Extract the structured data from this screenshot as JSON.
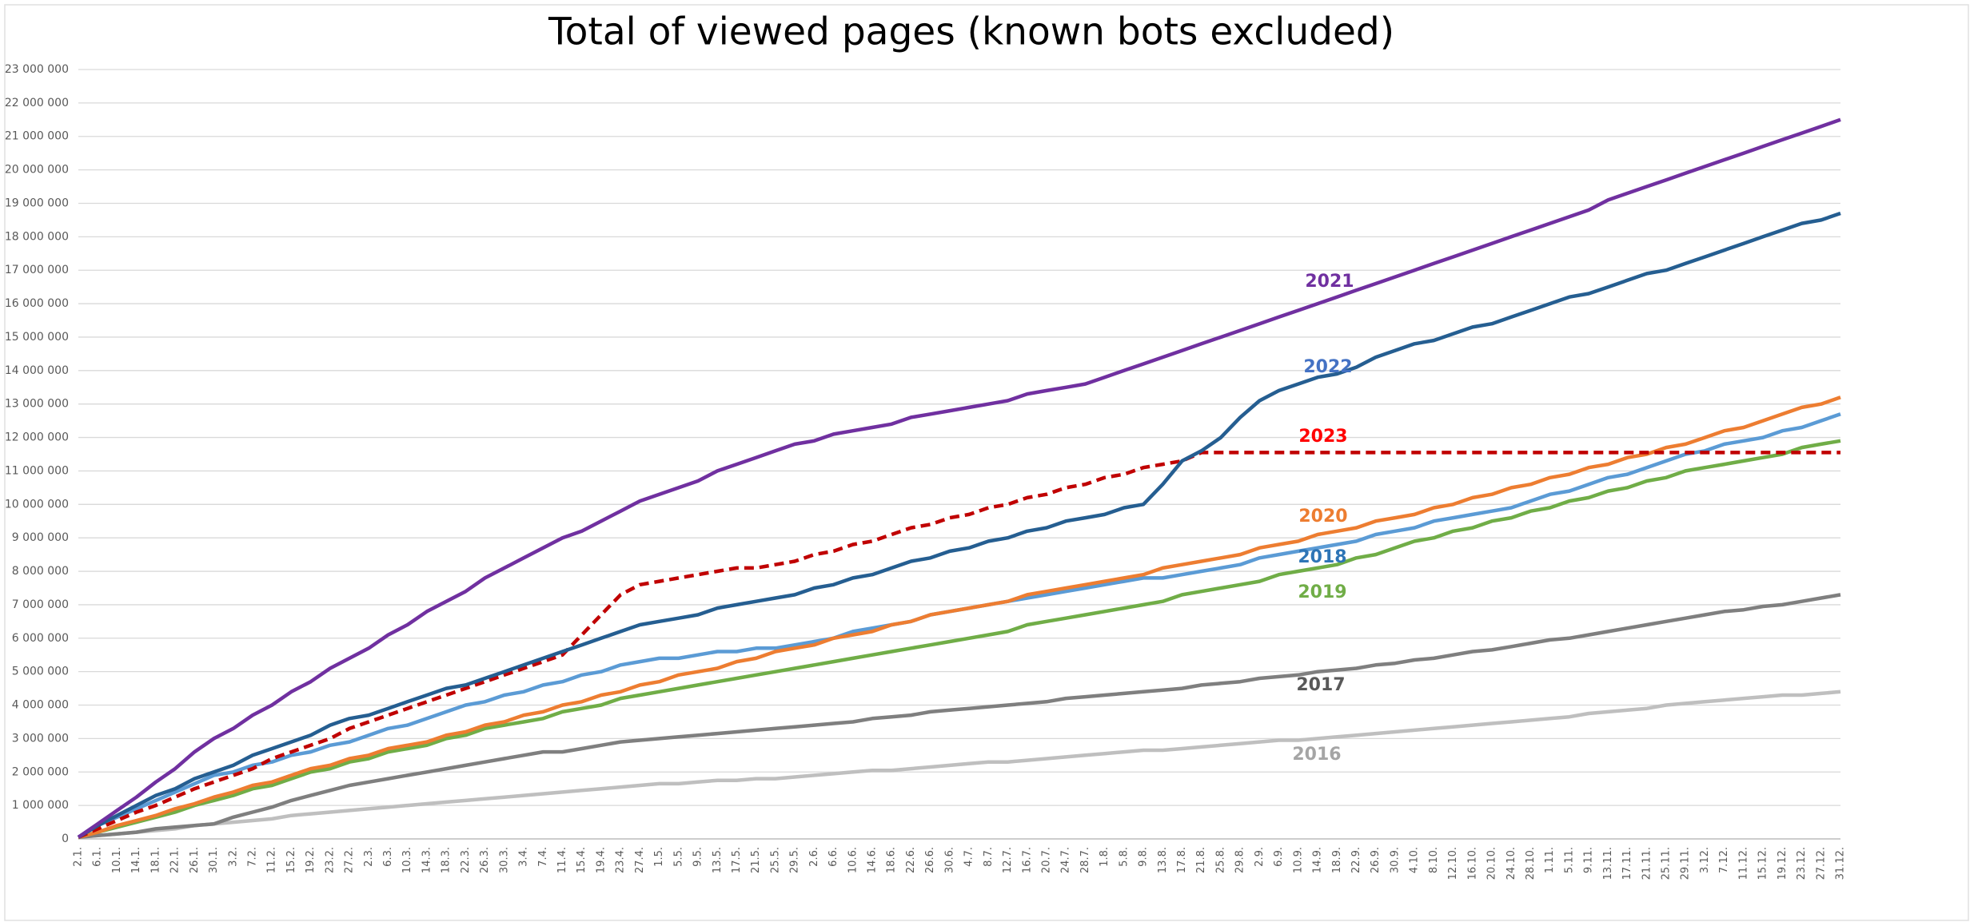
{
  "chart_data": {
    "type": "line",
    "title": "Total of viewed pages (known bots excluded)",
    "categories": [
      "2.1.",
      "6.1.",
      "10.1.",
      "14.1.",
      "18.1.",
      "22.1.",
      "26.1.",
      "30.1.",
      "3.2.",
      "7.2.",
      "11.2.",
      "15.2.",
      "19.2.",
      "23.2.",
      "27.2.",
      "2.3.",
      "6.3.",
      "10.3.",
      "14.3.",
      "18.3.",
      "22.3.",
      "26.3.",
      "30.3.",
      "3.4.",
      "7.4.",
      "11.4.",
      "15.4.",
      "19.4.",
      "23.4.",
      "27.4.",
      "1.5.",
      "5.5.",
      "9.5.",
      "13.5.",
      "17.5.",
      "21.5.",
      "25.5.",
      "29.5.",
      "2.6.",
      "6.6.",
      "10.6.",
      "14.6.",
      "18.6.",
      "22.6.",
      "26.6.",
      "30.6.",
      "4.7.",
      "8.7.",
      "12.7.",
      "16.7.",
      "20.7.",
      "24.7.",
      "28.7.",
      "1.8.",
      "5.8.",
      "9.8.",
      "13.8.",
      "17.8.",
      "21.8.",
      "25.8.",
      "29.8.",
      "2.9.",
      "6.9.",
      "10.9.",
      "14.9.",
      "18.9.",
      "22.9.",
      "26.9.",
      "30.9.",
      "4.10.",
      "8.10.",
      "12.10.",
      "16.10.",
      "20.10.",
      "24.10.",
      "28.10.",
      "1.11.",
      "5.11.",
      "9.11.",
      "13.11.",
      "17.11.",
      "21.11.",
      "25.11.",
      "29.11.",
      "3.12.",
      "7.12.",
      "11.12.",
      "15.12.",
      "19.12.",
      "23.12.",
      "27.12.",
      "31.12."
    ],
    "ylim": [
      0,
      23000000
    ],
    "yticks": [
      0,
      {
        "value": 1000000,
        "label": "1 000 000"
      },
      {
        "value": 2000000,
        "label": "2 000 000"
      },
      {
        "value": 3000000,
        "label": "3 000 000"
      },
      {
        "value": 4000000,
        "label": "4 000 000"
      },
      {
        "value": 5000000,
        "label": "5 000 000"
      },
      {
        "value": 6000000,
        "label": "6 000 000"
      },
      {
        "value": 7000000,
        "label": "7 000 000"
      },
      {
        "value": 8000000,
        "label": "8 000 000"
      },
      {
        "value": 9000000,
        "label": "9 000 000"
      },
      {
        "value": 10000000,
        "label": "10 000 000"
      },
      {
        "value": 11000000,
        "label": "11 000 000"
      },
      {
        "value": 12000000,
        "label": "12 000 000"
      },
      {
        "value": 13000000,
        "label": "13 000 000"
      },
      {
        "value": 14000000,
        "label": "14 000 000"
      },
      {
        "value": 15000000,
        "label": "15 000 000"
      },
      {
        "value": 16000000,
        "label": "16 000 000"
      },
      {
        "value": 17000000,
        "label": "17 000 000"
      },
      {
        "value": 18000000,
        "label": "18 000 000"
      },
      {
        "value": 19000000,
        "label": "19 000 000"
      },
      {
        "value": 20000000,
        "label": "20 000 000"
      },
      {
        "value": 21000000,
        "label": "21 000 000"
      },
      {
        "value": 22000000,
        "label": "22 000 000"
      },
      {
        "value": 23000000,
        "label": "23 000 000"
      }
    ],
    "grid": true,
    "series": [
      {
        "name": "2021",
        "color": "#7030a0",
        "values": [
          50000.0,
          450000.0,
          850000.0,
          1250000.0,
          1700000.0,
          2100000.0,
          2600000.0,
          3000000.0,
          3300000.0,
          3700000.0,
          4000000.0,
          4400000.0,
          4700000.0,
          5100000.0,
          5400000.0,
          5700000.0,
          6100000.0,
          6400000.0,
          6800000.0,
          7100000.0,
          7400000.0,
          7800000.0,
          8100000.0,
          8400000.0,
          8700000.0,
          9000000.0,
          9200000.0,
          9500000.0,
          9800000.0,
          10100000.0,
          10300000.0,
          10500000.0,
          10700000.0,
          11000000.0,
          11200000.0,
          11400000.0,
          11600000.0,
          11800000.0,
          11900000.0,
          12100000.0,
          12200000.0,
          12300000.0,
          12400000.0,
          12600000.0,
          12700000.0,
          12800000.0,
          12900000.0,
          13000000.0,
          13100000.0,
          13300000.0,
          13400000.0,
          13500000.0,
          13600000.0,
          13800000.0,
          14000000.0,
          14200000.0,
          14400000.0,
          14600000.0,
          14800000.0,
          15000000.0,
          15200000.0,
          15400000.0,
          15600000.0,
          15800000.0,
          16000000.0,
          16200000.0,
          16400000.0,
          16600000.0,
          16800000.0,
          17000000.0,
          17200000.0,
          17400000.0,
          17600000.0,
          17800000.0,
          18000000.0,
          18200000.0,
          18400000.0,
          18600000.0,
          18800000.0,
          19100000.0,
          19300000.0,
          19500000.0,
          19700000.0,
          19900000.0,
          20100000.0,
          20300000.0,
          20500000.0,
          20700000.0,
          20900000.0,
          21100000.0,
          21300000.0,
          21500000.0
        ]
      },
      {
        "name": "2022",
        "color": "#255e91",
        "values": [
          50000.0,
          400000.0,
          700000.0,
          1000000.0,
          1300000.0,
          1500000.0,
          1800000.0,
          2000000.0,
          2200000.0,
          2500000.0,
          2700000.0,
          2900000.0,
          3100000.0,
          3400000.0,
          3600000.0,
          3700000.0,
          3900000.0,
          4100000.0,
          4300000.0,
          4500000.0,
          4600000.0,
          4800000.0,
          5000000.0,
          5200000.0,
          5400000.0,
          5600000.0,
          5800000.0,
          6000000.0,
          6200000.0,
          6400000.0,
          6500000.0,
          6600000.0,
          6700000.0,
          6900000.0,
          7000000.0,
          7100000.0,
          7200000.0,
          7300000.0,
          7500000.0,
          7600000.0,
          7800000.0,
          7900000.0,
          8100000.0,
          8300000.0,
          8400000.0,
          8600000.0,
          8700000.0,
          8900000.0,
          9000000.0,
          9200000.0,
          9300000.0,
          9500000.0,
          9600000.0,
          9700000.0,
          9900000.0,
          10000000.0,
          10600000.0,
          11300000.0,
          11600000.0,
          12000000.0,
          12600000.0,
          13100000.0,
          13400000.0,
          13600000.0,
          13800000.0,
          13900000.0,
          14100000.0,
          14400000.0,
          14600000.0,
          14800000.0,
          14900000.0,
          15100000.0,
          15300000.0,
          15400000.0,
          15600000.0,
          15800000.0,
          16000000.0,
          16200000.0,
          16300000.0,
          16500000.0,
          16700000.0,
          16900000.0,
          17000000.0,
          17200000.0,
          17400000.0,
          17600000.0,
          17800000.0,
          18000000.0,
          18200000.0,
          18400000.0,
          18500000.0,
          18700000.0
        ]
      },
      {
        "name": "2023",
        "color": "#c00000",
        "dashed": true,
        "values": [
          50000.0,
          300000.0,
          550000.0,
          800000.0,
          1000000.0,
          1250000.0,
          1500000.0,
          1700000.0,
          1900000.0,
          2100000.0,
          2400000.0,
          2600000.0,
          2800000.0,
          3000000.0,
          3300000.0,
          3500000.0,
          3700000.0,
          3900000.0,
          4100000.0,
          4300000.0,
          4500000.0,
          4700000.0,
          4900000.0,
          5100000.0,
          5300000.0,
          5500000.0,
          6100000.0,
          6700000.0,
          7300000.0,
          7600000.0,
          7700000.0,
          7800000.0,
          7900000.0,
          8000000.0,
          8100000.0,
          8100000.0,
          8200000.0,
          8300000.0,
          8500000.0,
          8600000.0,
          8800000.0,
          8900000.0,
          9100000.0,
          9300000.0,
          9400000.0,
          9600000.0,
          9700000.0,
          9900000.0,
          10000000.0,
          10200000.0,
          10300000.0,
          10500000.0,
          10600000.0,
          10800000.0,
          10900000.0,
          11100000.0,
          11200000.0,
          11300000.0,
          11550000.0,
          11550000.0,
          11550000.0,
          11550000.0,
          11550000.0,
          11550000.0,
          11550000.0,
          11550000.0,
          11550000.0,
          11550000.0,
          11550000.0,
          11550000.0,
          11550000.0,
          11550000.0,
          11550000.0,
          11550000.0,
          11550000.0,
          11550000.0,
          11550000.0,
          11550000.0,
          11550000.0,
          11550000.0,
          11550000.0,
          11550000.0,
          11550000.0,
          11550000.0,
          11550000.0,
          11550000.0,
          11550000.0,
          11550000.0,
          11550000.0,
          11550000.0,
          11550000.0,
          11550000.0
        ]
      },
      {
        "name": "2020",
        "color": "#ed7d31",
        "values": [
          50000.0,
          200000.0,
          400000.0,
          550000.0,
          700000.0,
          900000.0,
          1050000.0,
          1250000.0,
          1400000.0,
          1600000.0,
          1700000.0,
          1900000.0,
          2100000.0,
          2200000.0,
          2400000.0,
          2500000.0,
          2700000.0,
          2800000.0,
          2900000.0,
          3100000.0,
          3200000.0,
          3400000.0,
          3500000.0,
          3700000.0,
          3800000.0,
          4000000.0,
          4100000.0,
          4300000.0,
          4400000.0,
          4600000.0,
          4700000.0,
          4900000.0,
          5000000.0,
          5100000.0,
          5300000.0,
          5400000.0,
          5600000.0,
          5700000.0,
          5800000.0,
          6000000.0,
          6100000.0,
          6200000.0,
          6400000.0,
          6500000.0,
          6700000.0,
          6800000.0,
          6900000.0,
          7000000.0,
          7100000.0,
          7300000.0,
          7400000.0,
          7500000.0,
          7600000.0,
          7700000.0,
          7800000.0,
          7900000.0,
          8100000.0,
          8200000.0,
          8300000.0,
          8400000.0,
          8500000.0,
          8700000.0,
          8800000.0,
          8900000.0,
          9100000.0,
          9200000.0,
          9300000.0,
          9500000.0,
          9600000.0,
          9700000.0,
          9900000.0,
          10000000.0,
          10200000.0,
          10300000.0,
          10500000.0,
          10600000.0,
          10800000.0,
          10900000.0,
          11100000.0,
          11200000.0,
          11400000.0,
          11500000.0,
          11700000.0,
          11800000.0,
          12000000.0,
          12200000.0,
          12300000.0,
          12500000.0,
          12700000.0,
          12900000.0,
          13000000.0,
          13200000.0
        ]
      },
      {
        "name": "2018",
        "color": "#5b9bd5",
        "values": [
          50000.0,
          400000.0,
          650000.0,
          900000.0,
          1150000.0,
          1400000.0,
          1650000.0,
          1900000.0,
          2000000.0,
          2200000.0,
          2300000.0,
          2500000.0,
          2600000.0,
          2800000.0,
          2900000.0,
          3100000.0,
          3300000.0,
          3400000.0,
          3600000.0,
          3800000.0,
          4000000.0,
          4100000.0,
          4300000.0,
          4400000.0,
          4600000.0,
          4700000.0,
          4900000.0,
          5000000.0,
          5200000.0,
          5300000.0,
          5400000.0,
          5400000.0,
          5500000.0,
          5600000.0,
          5600000.0,
          5700000.0,
          5700000.0,
          5800000.0,
          5900000.0,
          6000000.0,
          6200000.0,
          6300000.0,
          6400000.0,
          6500000.0,
          6700000.0,
          6800000.0,
          6900000.0,
          7000000.0,
          7100000.0,
          7200000.0,
          7300000.0,
          7400000.0,
          7500000.0,
          7600000.0,
          7700000.0,
          7800000.0,
          7800000.0,
          7900000.0,
          8000000.0,
          8100000.0,
          8200000.0,
          8400000.0,
          8500000.0,
          8600000.0,
          8700000.0,
          8800000.0,
          8900000.0,
          9100000.0,
          9200000.0,
          9300000.0,
          9500000.0,
          9600000.0,
          9700000.0,
          9800000.0,
          9900000.0,
          10100000.0,
          10300000.0,
          10400000.0,
          10600000.0,
          10800000.0,
          10900000.0,
          11100000.0,
          11300000.0,
          11500000.0,
          11600000.0,
          11800000.0,
          11900000.0,
          12000000.0,
          12200000.0,
          12300000.0,
          12500000.0,
          12700000.0
        ]
      },
      {
        "name": "2019",
        "color": "#70ad47",
        "values": [
          50000.0,
          200000.0,
          350000.0,
          500000.0,
          650000.0,
          800000.0,
          1000000.0,
          1150000.0,
          1300000.0,
          1500000.0,
          1600000.0,
          1800000.0,
          2000000.0,
          2100000.0,
          2300000.0,
          2400000.0,
          2600000.0,
          2700000.0,
          2800000.0,
          3000000.0,
          3100000.0,
          3300000.0,
          3400000.0,
          3500000.0,
          3600000.0,
          3800000.0,
          3900000.0,
          4000000.0,
          4200000.0,
          4300000.0,
          4400000.0,
          4500000.0,
          4600000.0,
          4700000.0,
          4800000.0,
          4900000.0,
          5000000.0,
          5100000.0,
          5200000.0,
          5300000.0,
          5400000.0,
          5500000.0,
          5600000.0,
          5700000.0,
          5800000.0,
          5900000.0,
          6000000.0,
          6100000.0,
          6200000.0,
          6400000.0,
          6500000.0,
          6600000.0,
          6700000.0,
          6800000.0,
          6900000.0,
          7000000.0,
          7100000.0,
          7300000.0,
          7400000.0,
          7500000.0,
          7600000.0,
          7700000.0,
          7900000.0,
          8000000.0,
          8100000.0,
          8200000.0,
          8400000.0,
          8500000.0,
          8700000.0,
          8900000.0,
          9000000.0,
          9200000.0,
          9300000.0,
          9500000.0,
          9600000.0,
          9800000.0,
          9900000.0,
          10100000.0,
          10200000.0,
          10400000.0,
          10500000.0,
          10700000.0,
          10800000.0,
          11000000.0,
          11100000.0,
          11200000.0,
          11300000.0,
          11400000.0,
          11500000.0,
          11700000.0,
          11800000.0,
          11900000.0
        ]
      },
      {
        "name": "2017",
        "color": "#7f7f7f",
        "values": [
          50000.0,
          100000.0,
          150000.0,
          200000.0,
          300000.0,
          350000.0,
          400000.0,
          450000.0,
          650000.0,
          800000.0,
          950000.0,
          1150000.0,
          1300000.0,
          1450000.0,
          1600000.0,
          1700000.0,
          1800000.0,
          1900000.0,
          2000000.0,
          2100000.0,
          2200000.0,
          2300000.0,
          2400000.0,
          2500000.0,
          2600000.0,
          2600000.0,
          2700000.0,
          2800000.0,
          2900000.0,
          2950000.0,
          3000000.0,
          3050000.0,
          3100000.0,
          3150000.0,
          3200000.0,
          3250000.0,
          3300000.0,
          3350000.0,
          3400000.0,
          3450000.0,
          3500000.0,
          3600000.0,
          3650000.0,
          3700000.0,
          3800000.0,
          3850000.0,
          3900000.0,
          3950000.0,
          4000000.0,
          4050000.0,
          4100000.0,
          4200000.0,
          4250000.0,
          4300000.0,
          4350000.0,
          4400000.0,
          4450000.0,
          4500000.0,
          4600000.0,
          4650000.0,
          4700000.0,
          4800000.0,
          4850000.0,
          4900000.0,
          5000000.0,
          5050000.0,
          5100000.0,
          5200000.0,
          5250000.0,
          5350000.0,
          5400000.0,
          5500000.0,
          5600000.0,
          5650000.0,
          5750000.0,
          5850000.0,
          5950000.0,
          6000000.0,
          6100000.0,
          6200000.0,
          6300000.0,
          6400000.0,
          6500000.0,
          6600000.0,
          6700000.0,
          6800000.0,
          6850000.0,
          6950000.0,
          7000000.0,
          7100000.0,
          7200000.0,
          7300000.0
        ]
      },
      {
        "name": "2016",
        "color": "#bfbfbf",
        "values": [
          50000.0,
          100000.0,
          150000.0,
          200000.0,
          250000.0,
          300000.0,
          400000.0,
          450000.0,
          500000.0,
          550000.0,
          600000.0,
          700000.0,
          750000.0,
          800000.0,
          850000.0,
          900000.0,
          950000.0,
          1000000.0,
          1050000.0,
          1100000.0,
          1150000.0,
          1200000.0,
          1250000.0,
          1300000.0,
          1350000.0,
          1400000.0,
          1450000.0,
          1500000.0,
          1550000.0,
          1600000.0,
          1650000.0,
          1650000.0,
          1700000.0,
          1750000.0,
          1750000.0,
          1800000.0,
          1800000.0,
          1850000.0,
          1900000.0,
          1950000.0,
          2000000.0,
          2050000.0,
          2050000.0,
          2100000.0,
          2150000.0,
          2200000.0,
          2250000.0,
          2300000.0,
          2300000.0,
          2350000.0,
          2400000.0,
          2450000.0,
          2500000.0,
          2550000.0,
          2600000.0,
          2650000.0,
          2650000.0,
          2700000.0,
          2750000.0,
          2800000.0,
          2850000.0,
          2900000.0,
          2950000.0,
          2950000.0,
          3000000.0,
          3050000.0,
          3100000.0,
          3150000.0,
          3200000.0,
          3250000.0,
          3300000.0,
          3350000.0,
          3400000.0,
          3450000.0,
          3500000.0,
          3550000.0,
          3600000.0,
          3650000.0,
          3750000.0,
          3800000.0,
          3850000.0,
          3900000.0,
          4000000.0,
          4050000.0,
          4100000.0,
          4150000.0,
          4200000.0,
          4250000.0,
          4300000.0,
          4300000.0,
          4350000.0,
          4400000.0
        ]
      }
    ]
  }
}
